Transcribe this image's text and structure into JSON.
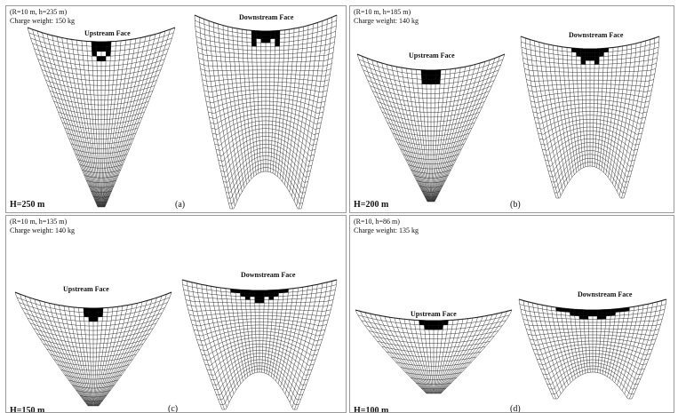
{
  "panels": [
    {
      "id": "a",
      "info1": "(R=10 m, h=235 m)",
      "info2": "Charge weight: 150 kg",
      "height_label": "H=250 m",
      "panel_label": "(a)",
      "upstream_label": "Upstream Face",
      "downstream_label": "Downstream Face"
    },
    {
      "id": "b",
      "info1": "(R=10 m, h=185 m)",
      "info2": "Charge weight: 140 kg",
      "height_label": "H=200 m",
      "panel_label": "(b)",
      "upstream_label": "Upstream Face",
      "downstream_label": "Downstream Face"
    },
    {
      "id": "c",
      "info1": "(R=10 m, h=135 m)",
      "info2": "Charge weight: 140 kg",
      "height_label": "H=150 m",
      "panel_label": "(c)",
      "upstream_label": "Upstream Face",
      "downstream_label": "Downstream Face"
    },
    {
      "id": "d",
      "info1": "(R=10, h=86 m)",
      "info2": "Charge weight: 135 kg",
      "height_label": "H=100 m",
      "panel_label": "(d)",
      "upstream_label": "Upstream Face",
      "downstream_label": "Downstream Face"
    }
  ]
}
